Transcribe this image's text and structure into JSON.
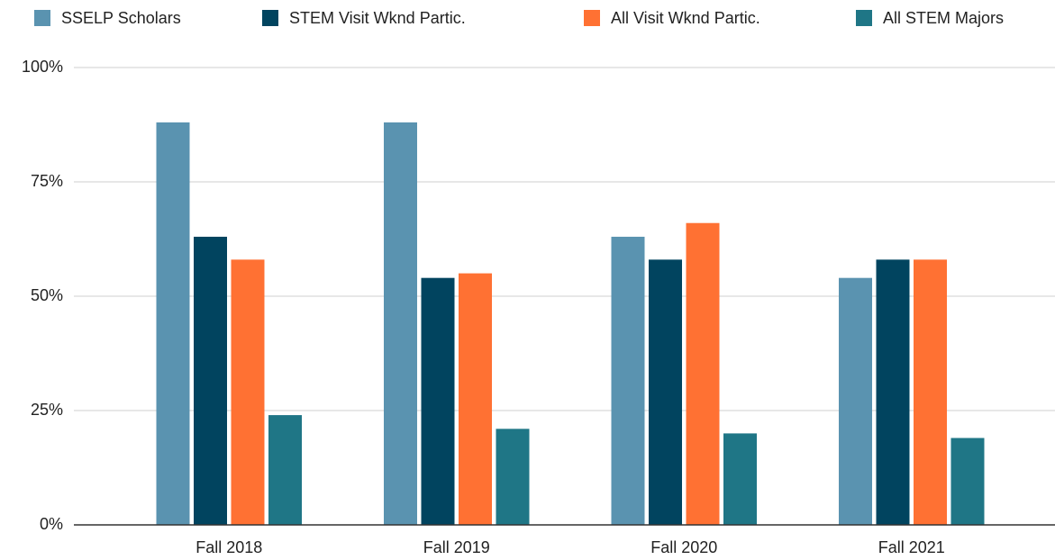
{
  "chart_data": {
    "type": "bar",
    "categories": [
      "Fall 2018",
      "Fall 2019",
      "Fall 2020",
      "Fall 2021"
    ],
    "series": [
      {
        "name": "SSELP Scholars",
        "color": "#5a93b0",
        "values": [
          88,
          88,
          63,
          54
        ]
      },
      {
        "name": "STEM Visit Wknd Partic.",
        "color": "#01445f",
        "values": [
          63,
          54,
          58,
          58
        ]
      },
      {
        "name": "All Visit Wknd Partic.",
        "color": "#ff7133",
        "values": [
          58,
          55,
          66,
          58
        ]
      },
      {
        "name": "All STEM Majors",
        "color": "#1f7686",
        "values": [
          24,
          21,
          20,
          19
        ]
      }
    ],
    "ylim": [
      0,
      100
    ],
    "yticks": [
      {
        "value": 0,
        "label": "0%"
      },
      {
        "value": 25,
        "label": "25%"
      },
      {
        "value": 50,
        "label": "50%"
      },
      {
        "value": 75,
        "label": "75%"
      },
      {
        "value": 100,
        "label": "100%"
      }
    ],
    "grid": true,
    "legend": "top"
  }
}
